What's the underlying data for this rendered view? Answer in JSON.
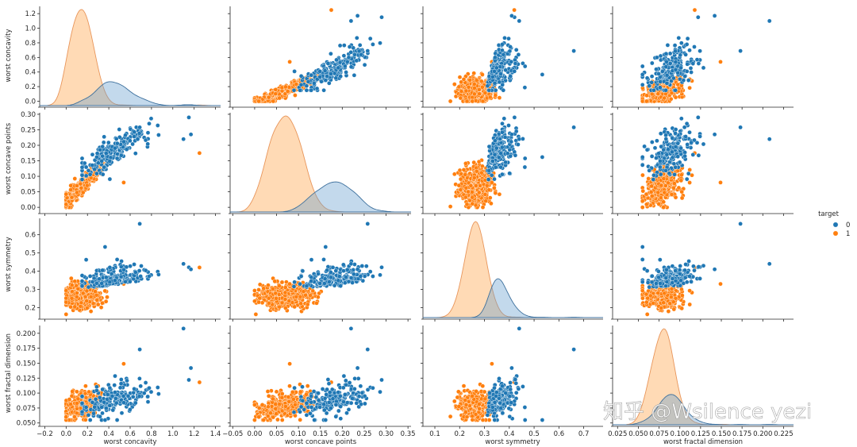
{
  "chart_data": {
    "type": "scatter",
    "kind": "pairplot",
    "title": "",
    "hue": "target",
    "legend": {
      "title": "target",
      "position": "right",
      "entries": [
        {
          "label": "0",
          "color": "#1f77b4"
        },
        {
          "label": "1",
          "color": "#ff7f0e"
        }
      ]
    },
    "variables": [
      "worst concavity",
      "worst concave points",
      "worst symmetry",
      "worst fractal dimension"
    ],
    "axes": {
      "worst concavity": {
        "range": [
          -0.2,
          1.45
        ],
        "ticks": [
          "-0.2",
          "0.0",
          "0.2",
          "0.4",
          "0.6",
          "0.8",
          "1.0",
          "1.2",
          "1.4"
        ]
      },
      "worst concave points": {
        "range": [
          -0.05,
          0.36
        ],
        "ticks": [
          "-0.05",
          "0.00",
          "0.05",
          "0.10",
          "0.15",
          "0.20",
          "0.25",
          "0.30",
          "0.35"
        ]
      },
      "worst symmetry": {
        "range": [
          0.05,
          0.77
        ],
        "ticks": [
          "0.1",
          "0.2",
          "0.3",
          "0.4",
          "0.5",
          "0.6",
          "0.7"
        ]
      },
      "worst fractal dimension": {
        "range": [
          0.02,
          0.235
        ],
        "ticks": [
          "0.025",
          "0.050",
          "0.075",
          "0.100",
          "0.125",
          "0.150",
          "0.175",
          "0.200",
          "0.225"
        ]
      }
    },
    "ylabels_ticks": {
      "worst concavity": [
        "0.0",
        "0.2",
        "0.4",
        "0.6",
        "0.8",
        "1.0",
        "1.2"
      ],
      "worst concave points": [
        "0.00",
        "0.05",
        "0.10",
        "0.15",
        "0.20",
        "0.25",
        "0.30"
      ],
      "worst symmetry": [
        "0.2",
        "0.3",
        "0.4",
        "0.5",
        "0.6"
      ],
      "worst fractal dimension": [
        "0.050",
        "0.075",
        "0.100",
        "0.125",
        "0.150",
        "0.175",
        "0.200"
      ]
    },
    "diagonal_kde": {
      "worst concavity": {
        "0": {
          "peak_x": 0.38,
          "peak_density": 0.47
        },
        "1": {
          "peak_x": 0.13,
          "peak_density": 1.25
        }
      },
      "worst concave points": {
        "0": {
          "peak_x": 0.18,
          "peak_density": 0.45
        },
        "1": {
          "peak_x": 0.075,
          "peak_density": 1.0
        }
      },
      "worst symmetry": {
        "0": {
          "peak_x": 0.3,
          "peak_density": 0.45
        },
        "1": {
          "peak_x": 0.265,
          "peak_density": 1.0
        }
      },
      "worst fractal dimension": {
        "0": {
          "peak_x": 0.08,
          "peak_density": 0.25
        },
        "1": {
          "peak_x": 0.075,
          "peak_density": 1.0
        }
      }
    },
    "series_summary": [
      {
        "name": "0",
        "color": "#1f77b4",
        "worst concavity": [
          0.15,
          1.17
        ],
        "worst concave points": [
          0.03,
          0.29
        ],
        "worst symmetry": [
          0.16,
          0.66
        ],
        "worst fractal dimension": [
          0.055,
          0.208
        ]
      },
      {
        "name": "1",
        "color": "#ff7f0e",
        "worst concavity": [
          0.0,
          1.25
        ],
        "worst concave points": [
          0.0,
          0.18
        ],
        "worst symmetry": [
          0.16,
          0.42
        ],
        "worst fractal dimension": [
          0.055,
          0.15
        ]
      }
    ]
  },
  "labels": {
    "ylabels": [
      "worst concavity",
      "worst concave points",
      "worst symmetry",
      "worst fractal dimension"
    ],
    "xlabels": [
      "worst concavity",
      "worst concave points",
      "worst symmetry",
      "worst fractal dimension"
    ],
    "legend_title": "target",
    "legend_0": "0",
    "legend_1": "1",
    "watermark": "知乎 @Wsilence yezi"
  }
}
